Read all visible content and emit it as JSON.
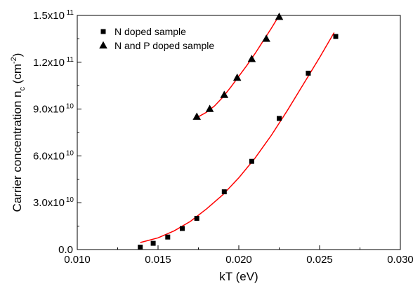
{
  "chart_data": {
    "type": "scatter",
    "title": "",
    "xlabel": "kT (eV)",
    "ylabel": {
      "main": "Carrier concentration n",
      "sub": "c",
      "unit_open": " (cm",
      "unit_sup": "-2",
      "unit_close": ")"
    },
    "xlim": [
      0.01,
      0.03
    ],
    "ylim": [
      0,
      150000000000.0
    ],
    "x_ticks": [
      {
        "value": 0.01,
        "label": "0.010"
      },
      {
        "value": 0.015,
        "label": "0.015"
      },
      {
        "value": 0.02,
        "label": "0.020"
      },
      {
        "value": 0.025,
        "label": "0.025"
      },
      {
        "value": 0.03,
        "label": "0.030"
      }
    ],
    "y_ticks": [
      {
        "value": 0,
        "label": "0.0"
      },
      {
        "value": 30000000000.0,
        "label": "3.0x10",
        "exp": "10"
      },
      {
        "value": 60000000000.0,
        "label": "6.0x10",
        "exp": "10"
      },
      {
        "value": 90000000000.0,
        "label": "9.0x10",
        "exp": "10"
      },
      {
        "value": 120000000000.0,
        "label": "1.2x10",
        "exp": "11"
      },
      {
        "value": 150000000000.0,
        "label": "1.5x10",
        "exp": "11"
      }
    ],
    "grid": false,
    "legend_position": "top-left",
    "fit_color": "#ff0000",
    "marker_color": "#000000",
    "series": [
      {
        "name": "N doped sample",
        "marker": "square",
        "points": [
          [
            0.0139,
            1500000000.0
          ],
          [
            0.0147,
            4000000000.0
          ],
          [
            0.0156,
            8000000000.0
          ],
          [
            0.0165,
            13500000000.0
          ],
          [
            0.0174,
            20000000000.0
          ],
          [
            0.0191,
            37000000000.0
          ],
          [
            0.0208,
            56500000000.0
          ],
          [
            0.0225,
            84000000000.0
          ],
          [
            0.0243,
            113000000000.0
          ],
          [
            0.026,
            136500000000.0
          ]
        ],
        "fit": [
          [
            0.0139,
            4500000000.0
          ],
          [
            0.015,
            7500000000.0
          ],
          [
            0.016,
            12000000000.0
          ],
          [
            0.017,
            18000000000.0
          ],
          [
            0.018,
            26000000000.0
          ],
          [
            0.019,
            35000000000.0
          ],
          [
            0.02,
            46000000000.0
          ],
          [
            0.021,
            58500000000.0
          ],
          [
            0.022,
            73000000000.0
          ],
          [
            0.023,
            89000000000.0
          ],
          [
            0.024,
            106000000000.0
          ],
          [
            0.025,
            123000000000.0
          ],
          [
            0.0259,
            139000000000.0
          ]
        ]
      },
      {
        "name": "N and P doped sample",
        "marker": "triangle",
        "points": [
          [
            0.0174,
            85000000000.0
          ],
          [
            0.0182,
            90000000000.0
          ],
          [
            0.0191,
            99000000000.0
          ],
          [
            0.0199,
            110000000000.0
          ],
          [
            0.0208,
            122000000000.0
          ],
          [
            0.0217,
            135000000000.0
          ],
          [
            0.0225,
            149000000000.0
          ]
        ],
        "fit": [
          [
            0.0174,
            84500000000.0
          ],
          [
            0.018,
            88000000000.0
          ],
          [
            0.0185,
            92000000000.0
          ],
          [
            0.019,
            97500000000.0
          ],
          [
            0.0195,
            104000000000.0
          ],
          [
            0.02,
            111000000000.0
          ],
          [
            0.0205,
            118000000000.0
          ],
          [
            0.021,
            125500000000.0
          ],
          [
            0.0215,
            133500000000.0
          ],
          [
            0.022,
            141500000000.0
          ],
          [
            0.0225,
            150000000000.0
          ],
          [
            0.0228,
            155000000000.0
          ]
        ]
      }
    ]
  }
}
